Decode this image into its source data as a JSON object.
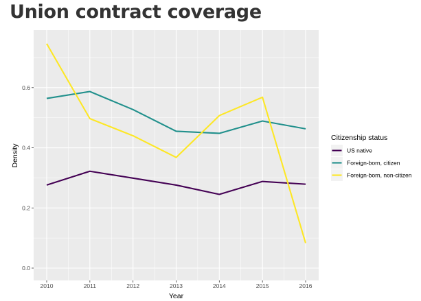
{
  "title": "Union contract coverage",
  "chart_data": {
    "type": "line",
    "title": "Union contract coverage",
    "xlabel": "Year",
    "ylabel": "Density",
    "x": [
      "2010",
      "2011",
      "2012",
      "2013",
      "2014",
      "2015",
      "2016"
    ],
    "xlim": [
      2010,
      2016
    ],
    "ylim": [
      0,
      0.75
    ],
    "yticks": [
      "0.0",
      "0.2",
      "0.4",
      "0.6"
    ],
    "grid": true,
    "legend_title": "Citizenship status",
    "legend_position": "right",
    "series": [
      {
        "name": "US native",
        "color": "#440154",
        "values": [
          0.276,
          0.322,
          0.299,
          0.276,
          0.245,
          0.288,
          0.279
        ]
      },
      {
        "name": "Foreign-born, citizen",
        "color": "#21908C",
        "values": [
          0.564,
          0.587,
          0.527,
          0.455,
          0.448,
          0.489,
          0.463
        ]
      },
      {
        "name": "Foreign-born, non-citizen",
        "color": "#FDE725",
        "values": [
          0.746,
          0.497,
          0.44,
          0.368,
          0.507,
          0.568,
          0.083
        ]
      }
    ]
  }
}
